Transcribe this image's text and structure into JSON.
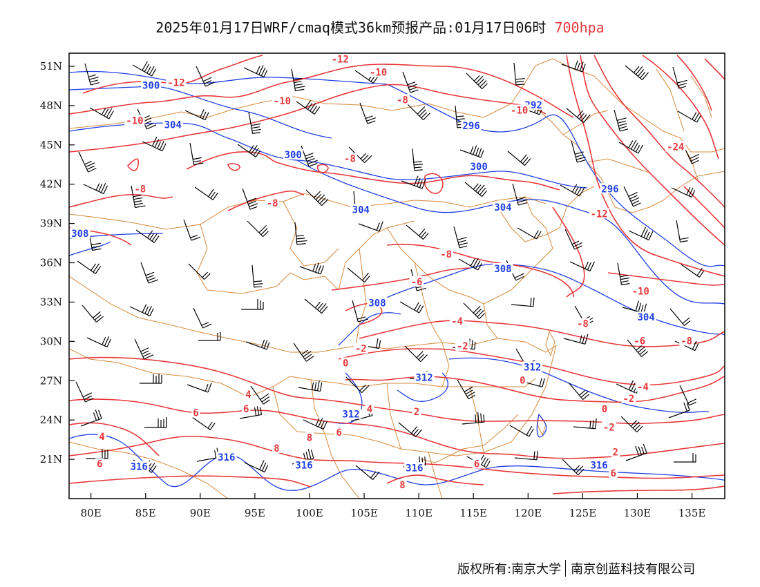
{
  "header": {
    "title": "2025年01月17日WRF/cmaq模式36km预报产品:01月17日06时",
    "level": "700hpa"
  },
  "footer": {
    "copyright_left": "版权所有:南京大学",
    "copyright_right": "南京创蓝科技有限公司"
  },
  "map": {
    "colors": {
      "height_contour": "#1f3fe6",
      "temperature_contour": "#e8373a",
      "boundary": "#d8883a",
      "wind_barb": "#000000",
      "frame": "#000000"
    },
    "lon_range": [
      78,
      138
    ],
    "lat_range": [
      18,
      52
    ],
    "x_ticks": [
      "80E",
      "85E",
      "90E",
      "95E",
      "100E",
      "105E",
      "110E",
      "115E",
      "120E",
      "125E",
      "130E",
      "135E"
    ],
    "y_ticks": [
      "51N",
      "48N",
      "45N",
      "42N",
      "39N",
      "36N",
      "33N",
      "30N",
      "27N",
      "24N",
      "21N"
    ],
    "height_labels": [
      {
        "text": "300",
        "lon": 85.5,
        "lat": 49.5
      },
      {
        "text": "304",
        "lon": 87.5,
        "lat": 46.5
      },
      {
        "text": "300",
        "lon": 98.5,
        "lat": 44.2
      },
      {
        "text": "296",
        "lon": 114.8,
        "lat": 46.4
      },
      {
        "text": "300",
        "lon": 115.5,
        "lat": 43.3
      },
      {
        "text": "304",
        "lon": 104.7,
        "lat": 40.0
      },
      {
        "text": "304",
        "lon": 117.7,
        "lat": 40.2
      },
      {
        "text": "292",
        "lon": 120.5,
        "lat": 48.0
      },
      {
        "text": "296",
        "lon": 127.5,
        "lat": 41.6
      },
      {
        "text": "308",
        "lon": 79.0,
        "lat": 38.2
      },
      {
        "text": "308",
        "lon": 117.7,
        "lat": 35.5
      },
      {
        "text": "308",
        "lon": 106.2,
        "lat": 32.9
      },
      {
        "text": "304",
        "lon": 130.8,
        "lat": 31.8
      },
      {
        "text": "312",
        "lon": 110.5,
        "lat": 27.2
      },
      {
        "text": "312",
        "lon": 120.4,
        "lat": 28.0
      },
      {
        "text": "312",
        "lon": 103.8,
        "lat": 24.4
      },
      {
        "text": "316",
        "lon": 84.4,
        "lat": 20.4
      },
      {
        "text": "316",
        "lon": 92.4,
        "lat": 21.1
      },
      {
        "text": "316",
        "lon": 99.5,
        "lat": 20.5
      },
      {
        "text": "316",
        "lon": 109.6,
        "lat": 20.3
      },
      {
        "text": "316",
        "lon": 126.5,
        "lat": 20.5
      }
    ],
    "temperature_labels": [
      {
        "text": "-12",
        "lon": 102.8,
        "lat": 51.5
      },
      {
        "text": "-10",
        "lon": 106.3,
        "lat": 50.5
      },
      {
        "text": "-12",
        "lon": 87.8,
        "lat": 49.7
      },
      {
        "text": "-10",
        "lon": 97.5,
        "lat": 48.3
      },
      {
        "text": "-8",
        "lon": 108.5,
        "lat": 48.4
      },
      {
        "text": "-10",
        "lon": 84.0,
        "lat": 46.8
      },
      {
        "text": "-10",
        "lon": 119.2,
        "lat": 47.6
      },
      {
        "text": "-8",
        "lon": 103.7,
        "lat": 43.9
      },
      {
        "text": "-8",
        "lon": 84.5,
        "lat": 41.6
      },
      {
        "text": "-8",
        "lon": 96.6,
        "lat": 40.5
      },
      {
        "text": "-12",
        "lon": 126.5,
        "lat": 39.7
      },
      {
        "text": "-24",
        "lon": 133.5,
        "lat": 44.8
      },
      {
        "text": "-8",
        "lon": 112.5,
        "lat": 36.6
      },
      {
        "text": "-6",
        "lon": 109.8,
        "lat": 34.5
      },
      {
        "text": "-10",
        "lon": 130.3,
        "lat": 33.8
      },
      {
        "text": "-4",
        "lon": 113.5,
        "lat": 31.5
      },
      {
        "text": "-8",
        "lon": 125.0,
        "lat": 31.3
      },
      {
        "text": "-6",
        "lon": 130.2,
        "lat": 30.0
      },
      {
        "text": "-8",
        "lon": 134.5,
        "lat": 30.0
      },
      {
        "text": "-2",
        "lon": 114.0,
        "lat": 29.6
      },
      {
        "text": "-2",
        "lon": 104.7,
        "lat": 29.4
      },
      {
        "text": "0",
        "lon": 103.3,
        "lat": 28.3
      },
      {
        "text": "0",
        "lon": 119.5,
        "lat": 27.0
      },
      {
        "text": "-4",
        "lon": 130.5,
        "lat": 26.5
      },
      {
        "text": "-2",
        "lon": 129.2,
        "lat": 25.6
      },
      {
        "text": "4",
        "lon": 94.4,
        "lat": 25.9
      },
      {
        "text": "6",
        "lon": 89.6,
        "lat": 24.5
      },
      {
        "text": "6",
        "lon": 94.2,
        "lat": 24.8
      },
      {
        "text": "4",
        "lon": 105.5,
        "lat": 24.8
      },
      {
        "text": "2",
        "lon": 109.8,
        "lat": 24.6
      },
      {
        "text": "0",
        "lon": 127.0,
        "lat": 24.8
      },
      {
        "text": "-2",
        "lon": 127.4,
        "lat": 23.4
      },
      {
        "text": "4",
        "lon": 81.0,
        "lat": 22.7
      },
      {
        "text": "6",
        "lon": 102.7,
        "lat": 23.0
      },
      {
        "text": "8",
        "lon": 100.0,
        "lat": 22.6
      },
      {
        "text": "8",
        "lon": 97.0,
        "lat": 21.8
      },
      {
        "text": "2",
        "lon": 128.0,
        "lat": 21.5
      },
      {
        "text": "6",
        "lon": 80.8,
        "lat": 20.6
      },
      {
        "text": "6",
        "lon": 115.3,
        "lat": 20.6
      },
      {
        "text": "8",
        "lon": 108.5,
        "lat": 19.0
      },
      {
        "text": "6",
        "lon": 127.8,
        "lat": 19.9
      }
    ]
  }
}
